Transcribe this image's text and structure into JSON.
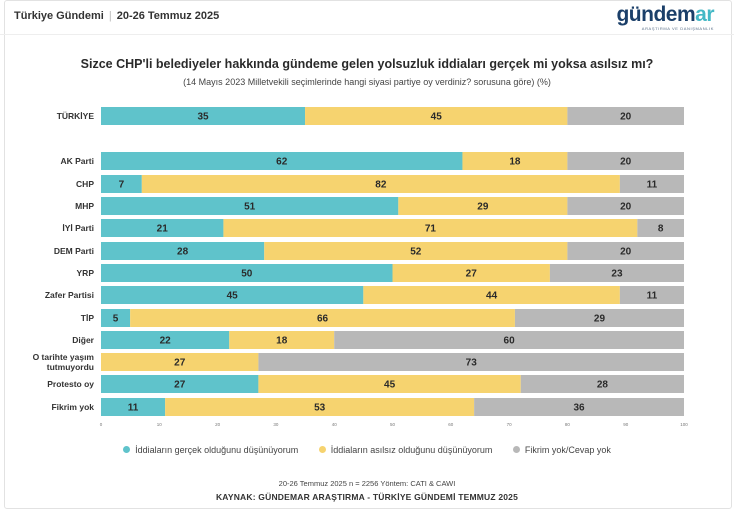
{
  "header": {
    "section": "Türkiye Gündemi",
    "dates": "20-26 Temmuz 2025"
  },
  "logo": {
    "word_part1": "gündem",
    "word_part2": "ar",
    "tagline": "ARAŞTIRMA VE DANIŞMANLIK"
  },
  "colors": {
    "real": "#5fc3cb",
    "baseless": "#f6d36f",
    "noidea": "#b8b8b8"
  },
  "chart_data": {
    "type": "bar",
    "orientation": "horizontal-stacked-100",
    "title": "Sizce CHP'li belediyeler hakkında gündeme gelen yolsuzluk iddiaları gerçek mi yoksa asılsız mı?",
    "subtitle": "(14 Mayıs 2023 Milletvekili seçimlerinde hangi siyasi partiye oy verdiniz? sorusuna göre) (%)",
    "categories": [
      [
        "TÜRKİYE"
      ],
      [
        "AK Parti"
      ],
      [
        "CHP"
      ],
      [
        "MHP"
      ],
      [
        "İYİ Parti"
      ],
      [
        "DEM Parti"
      ],
      [
        "YRP"
      ],
      [
        "Zafer Partisi"
      ],
      [
        "TİP"
      ],
      [
        "Diğer"
      ],
      [
        "O tarihte yaşım",
        "tutmuyordu"
      ],
      [
        "Protesto oy"
      ],
      [
        "Fikrim yok"
      ]
    ],
    "series": [
      {
        "name": "İddiaların gerçek olduğunu düşünüyorum",
        "color": "#5fc3cb",
        "values": [
          35,
          62,
          7,
          51,
          21,
          28,
          50,
          45,
          5,
          22,
          0,
          27,
          11
        ]
      },
      {
        "name": "İddiaların asılsız olduğunu düşünüyorum",
        "color": "#f6d36f",
        "values": [
          45,
          18,
          82,
          29,
          71,
          52,
          27,
          44,
          66,
          18,
          27,
          45,
          53
        ]
      },
      {
        "name": "Fikrim yok/Cevap yok",
        "color": "#b8b8b8",
        "values": [
          20,
          20,
          11,
          20,
          8,
          20,
          23,
          11,
          29,
          60,
          73,
          28,
          36
        ]
      }
    ],
    "xlim": [
      0,
      100
    ],
    "xticks": [
      "0",
      "10",
      "20",
      "30",
      "40",
      "50",
      "60",
      "70",
      "80",
      "90",
      "100"
    ],
    "legend": "bottom"
  },
  "footer": {
    "note": "20-26 Temmuz 2025 n = 2256 Yöntem: CATI & CAWI",
    "source": "KAYNAK: GÜNDEMAR ARAŞTIRMA - TÜRKİYE GÜNDEMİ TEMMUZ 2025"
  }
}
